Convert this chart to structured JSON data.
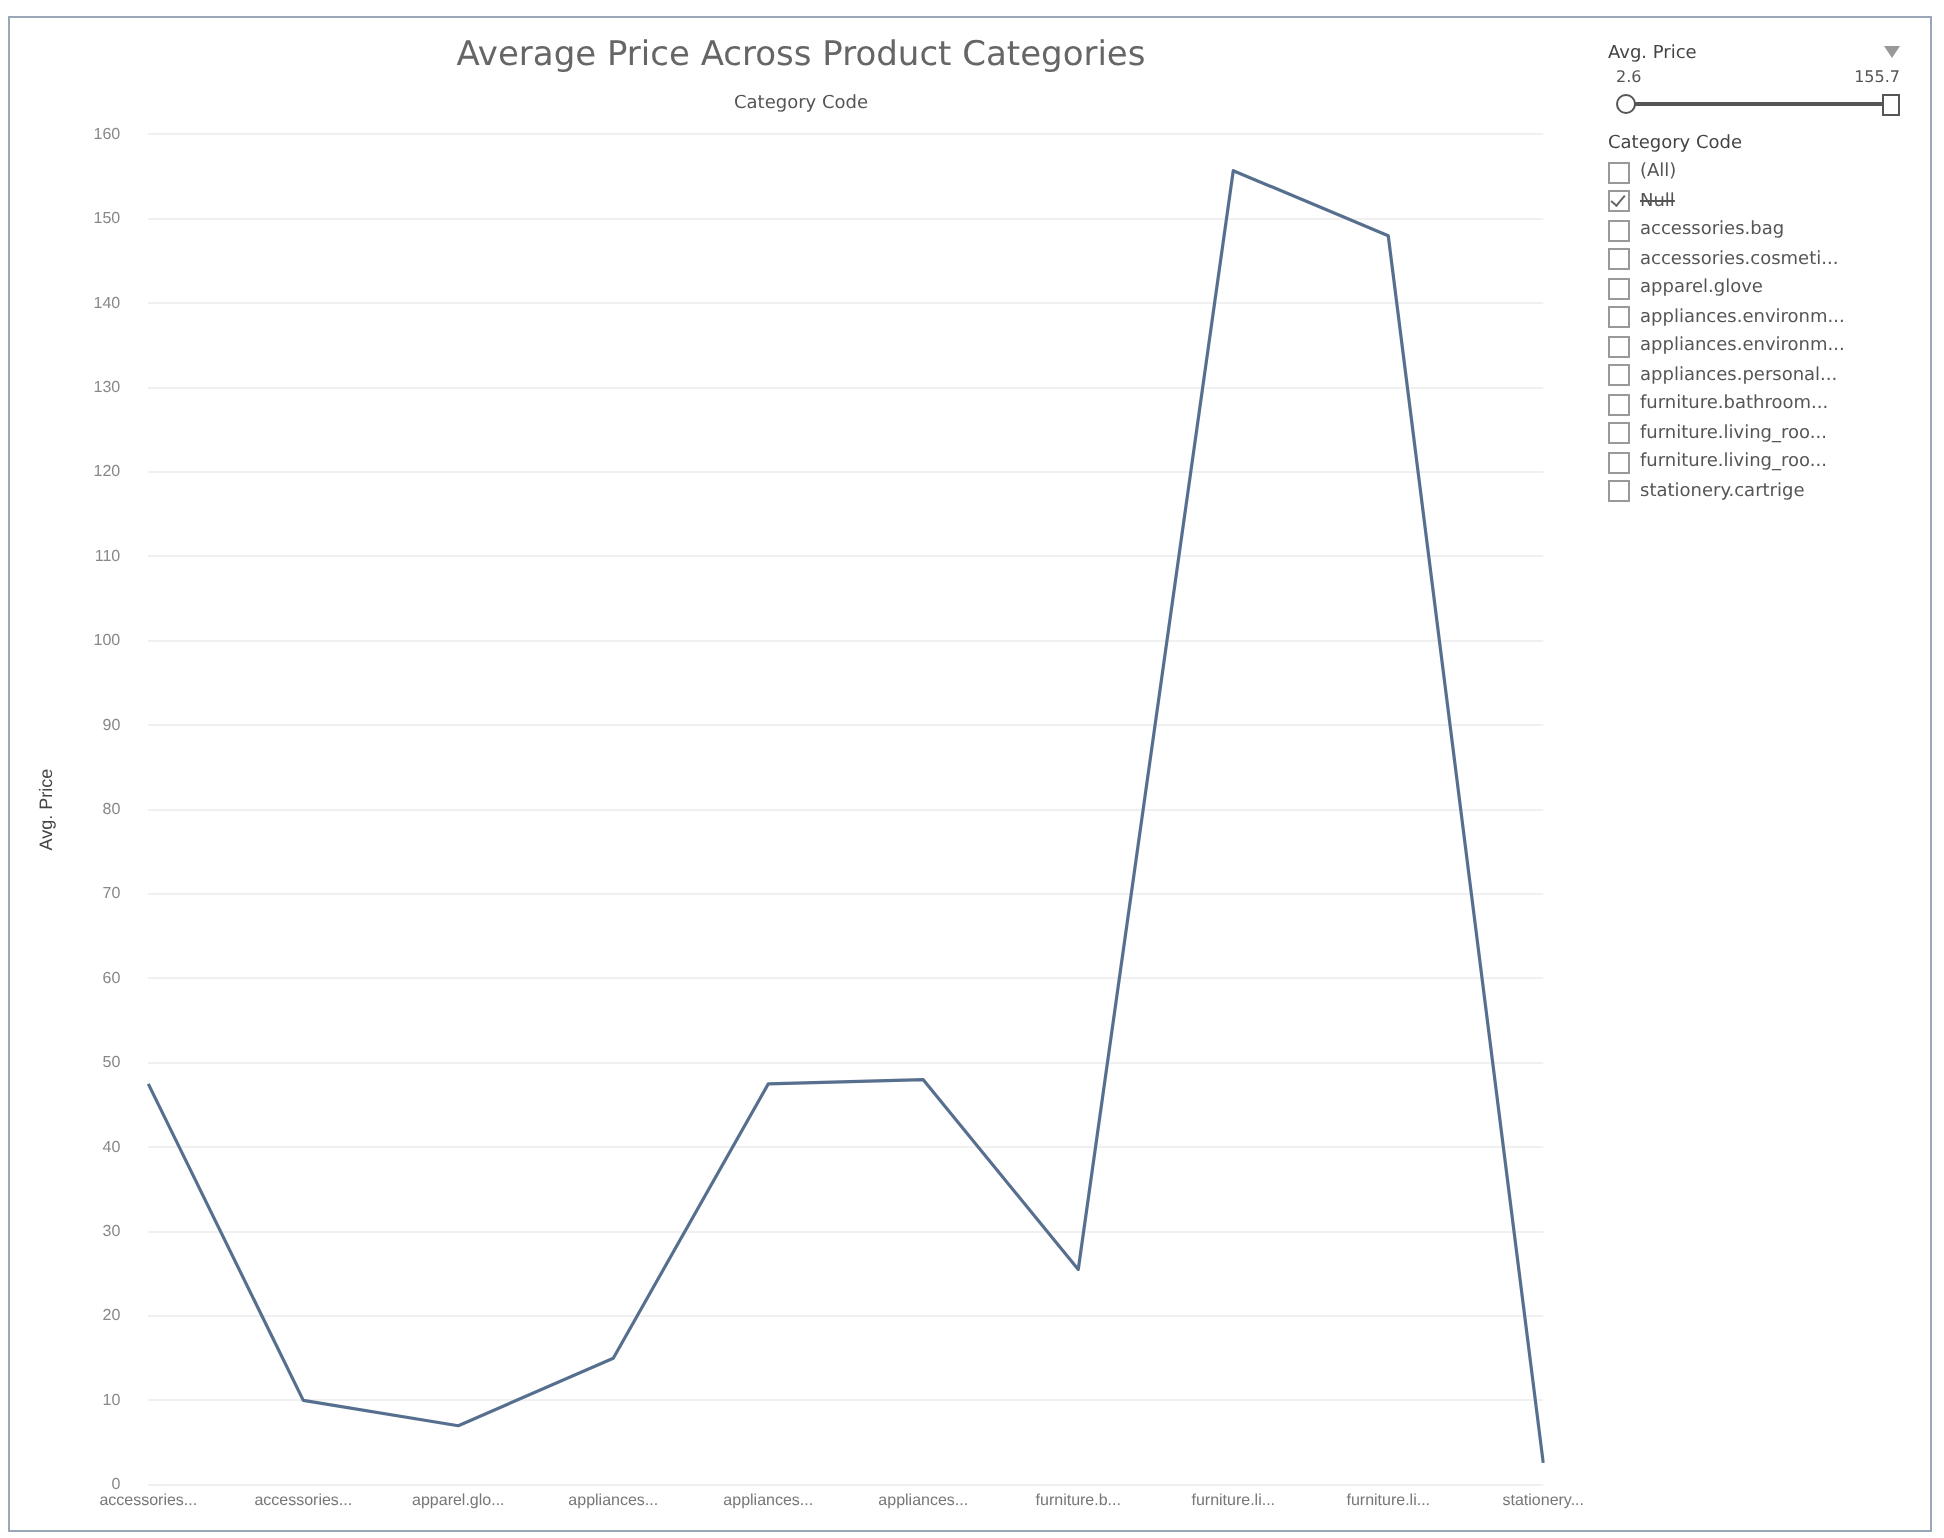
{
  "chart_data": {
    "type": "line",
    "title": "Average Price Across Product Categories",
    "xlabel": "Category Code",
    "ylabel": "Avg. Price",
    "categories": [
      "accessories...",
      "accessories...",
      "apparel.glo...",
      "appliances...",
      "appliances...",
      "appliances...",
      "furniture.b...",
      "furniture.li...",
      "furniture.li...",
      "stationery..."
    ],
    "series": [
      {
        "color": "#566f8f",
        "values": [
          47.5,
          10,
          7,
          15,
          47.5,
          48,
          25.5,
          155.7,
          148,
          2.6
        ]
      }
    ],
    "ylim": [
      0,
      160
    ],
    "yticks": [
      0,
      10,
      20,
      30,
      40,
      50,
      60,
      70,
      80,
      90,
      100,
      110,
      120,
      130,
      140,
      150,
      160
    ],
    "grid": "y",
    "legend": false,
    "marker": "none",
    "line_style": "solid",
    "annotations": [
      "Avg. Price",
      "2.6",
      "155.7",
      "Category Code",
      "(All)",
      "Null",
      "accessories.bag",
      "accessories.cosmeti...",
      "apparel.glove",
      "appliances.environm...",
      "appliances.environm...",
      "appliances.personal...",
      "furniture.bathroom...",
      "furniture.living_roo...",
      "furniture.living_roo...",
      "stationery.cartrige"
    ]
  }
}
